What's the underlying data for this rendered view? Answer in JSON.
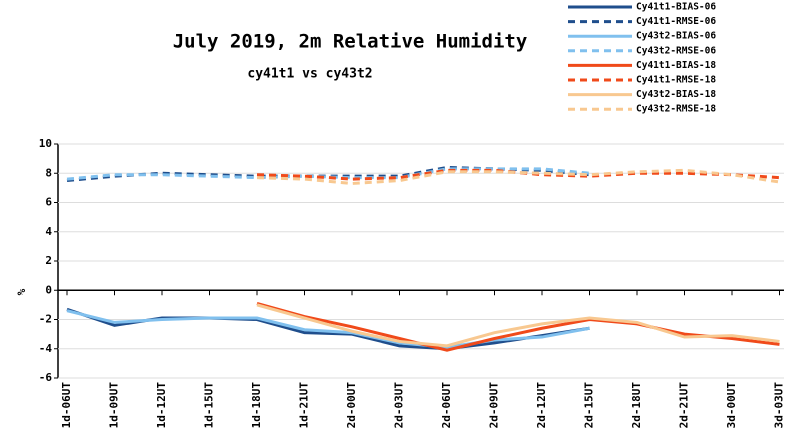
{
  "chart_data": {
    "type": "line",
    "title": "July 2019, 2m Relative Humidity",
    "subtitle": "cy41t1 vs cy43t2",
    "y_label": "%",
    "categories": [
      "1d-06UT",
      "1d-09UT",
      "1d-12UT",
      "1d-15UT",
      "1d-18UT",
      "1d-21UT",
      "2d-00UT",
      "2d-03UT",
      "2d-06UT",
      "2d-09UT",
      "2d-12UT",
      "2d-15UT",
      "2d-18UT",
      "2d-21UT",
      "3d-00UT",
      "3d-03UT"
    ],
    "ylim": [
      -6,
      10
    ],
    "yticks": [
      -6,
      -4,
      -2,
      0,
      2,
      4,
      6,
      8,
      10
    ],
    "grid": true,
    "legend": "top-right",
    "series": [
      {
        "name": "Cy41t1-BIAS-06",
        "color": "#1f4e8c",
        "dashed": false,
        "values": [
          -1.3,
          -2.4,
          -1.9,
          -1.9,
          -2.0,
          -2.9,
          -3.0,
          -3.8,
          -4.0,
          -3.6,
          -3.1,
          -2.6,
          null,
          null,
          null,
          null
        ]
      },
      {
        "name": "Cy41t1-RMSE-06",
        "color": "#1f4e8c",
        "dashed": true,
        "values": [
          7.5,
          7.8,
          8.0,
          7.9,
          7.8,
          7.8,
          7.8,
          7.8,
          8.4,
          8.3,
          8.2,
          7.9,
          null,
          null,
          null,
          null
        ]
      },
      {
        "name": "Cy43t2-BIAS-06",
        "color": "#80c0ee",
        "dashed": false,
        "values": [
          -1.4,
          -2.2,
          -2.0,
          -1.9,
          -1.9,
          -2.7,
          -2.9,
          -3.6,
          -3.9,
          -3.4,
          -3.2,
          -2.6,
          null,
          null,
          null,
          null
        ]
      },
      {
        "name": "Cy43t2-RMSE-06",
        "color": "#80c0ee",
        "dashed": true,
        "values": [
          7.6,
          7.9,
          7.9,
          7.8,
          7.7,
          7.8,
          7.7,
          7.7,
          8.3,
          8.3,
          8.3,
          8.0,
          null,
          null,
          null,
          null
        ]
      },
      {
        "name": "Cy41t1-BIAS-18",
        "color": "#f04a1a",
        "dashed": false,
        "values": [
          null,
          null,
          null,
          null,
          -0.9,
          -1.8,
          -2.5,
          -3.3,
          -4.1,
          -3.3,
          -2.6,
          -2.0,
          -2.3,
          -3.0,
          -3.3,
          -3.7
        ]
      },
      {
        "name": "Cy41t1-RMSE-18",
        "color": "#f04a1a",
        "dashed": true,
        "values": [
          null,
          null,
          null,
          null,
          7.9,
          7.8,
          7.6,
          7.7,
          8.2,
          8.2,
          7.9,
          7.8,
          8.0,
          8.0,
          7.9,
          7.7
        ]
      },
      {
        "name": "Cy43t2-BIAS-18",
        "color": "#f8c890",
        "dashed": false,
        "values": [
          null,
          null,
          null,
          null,
          -1.0,
          -1.9,
          -2.8,
          -3.5,
          -3.8,
          -2.9,
          -2.3,
          -1.9,
          -2.2,
          -3.2,
          -3.1,
          -3.5
        ]
      },
      {
        "name": "Cy43t2-RMSE-18",
        "color": "#f8c890",
        "dashed": true,
        "values": [
          null,
          null,
          null,
          null,
          7.7,
          7.6,
          7.3,
          7.5,
          8.1,
          8.1,
          8.0,
          7.9,
          8.1,
          8.2,
          7.9,
          7.4
        ]
      }
    ]
  }
}
